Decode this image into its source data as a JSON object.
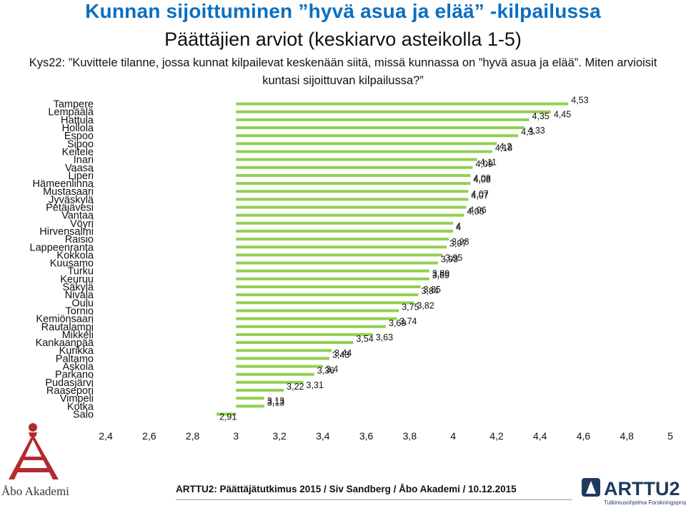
{
  "header": {
    "title": "Kunnan sijoittuminen ”hyvä asua ja elää” -kilpailussa",
    "subtitle": "Päättäjien arviot (keskiarvo asteikolla 1-5)",
    "question_line1": "Kys22: ”Kuvittele tilanne, jossa kunnat kilpailevat keskenään siitä, missä kunnassa on ”hyvä asua ja elää”. Miten arvioisit",
    "question_line2": "kuntasi sijoittuvan kilpailussa?”"
  },
  "footer": {
    "text": "ARTTU2: Päättäjätutkimus 2015 / Siv Sandberg / Åbo Akademi / 10.12.2015",
    "logo_left_text": "Åbo Akademi",
    "logo_right_text": "ARTTU2",
    "logo_right_tagline": "Tutkimusohjelma Forskningsprogram"
  },
  "colors": {
    "title": "#0b6fc0",
    "bar": "#92d050",
    "logo_left": "#b22a2f",
    "logo_right": "#1f3a5f"
  },
  "chart_data": {
    "type": "bar",
    "orientation": "horizontal",
    "categories": [
      "Tampere",
      "Lempäälä",
      "Hattula",
      "Hollola",
      "Espoo",
      "Sipoo",
      "Keitele",
      "Inari",
      "Vaasa",
      "Liperi",
      "Hämeenlinna",
      "Mustasaari",
      "Jyväskylä",
      "Petäjävesi",
      "Vantaa",
      "Vöyri",
      "Hirvensalmi",
      "Raisio",
      "Lappeenranta",
      "Kokkola",
      "Kuusamo",
      "Turku",
      "Keuruu",
      "Säkylä",
      "Nivala",
      "Oulu",
      "Tornio",
      "Kemiönsaari",
      "Rautalampi",
      "Mikkeli",
      "Kankaanpää",
      "Kurikka",
      "Paltamo",
      "Askola",
      "Parkano",
      "Pudasjärvi",
      "Raasepori",
      "Vimpeli",
      "Kotka",
      "Salo"
    ],
    "values": [
      4.53,
      4.45,
      4.35,
      4.33,
      4.3,
      4.2,
      4.18,
      4.11,
      4.09,
      4.08,
      4.08,
      4.07,
      4.07,
      4.06,
      4.05,
      4,
      4,
      3.98,
      3.97,
      3.95,
      3.93,
      3.89,
      3.89,
      3.85,
      3.84,
      3.82,
      3.75,
      3.74,
      3.69,
      3.63,
      3.54,
      3.44,
      3.43,
      3.4,
      3.36,
      3.31,
      3.22,
      3.13,
      3.13,
      2.91
    ],
    "value_labels": [
      "4,53",
      "4,45",
      "4,35",
      "4,33",
      "4,3",
      "4,2",
      "4,18",
      "4,11",
      "4,09",
      "4,08",
      "4,08",
      "4,07",
      "4,07",
      "4,06",
      "4,05",
      "4",
      "4",
      "3,98",
      "3,97",
      "3,95",
      "3,93",
      "3,89",
      "3,89",
      "3,85",
      "3,84",
      "3,82",
      "3,75",
      "3,74",
      "3,69",
      "3,63",
      "3,54",
      "3,44",
      "3,43",
      "3,4",
      "3,36",
      "3,31",
      "3,22",
      "3,13",
      "3,13",
      "2,91"
    ],
    "xlim": [
      2.4,
      5
    ],
    "xticks": [
      2.4,
      2.6,
      2.8,
      3,
      3.2,
      3.4,
      3.6,
      3.8,
      4,
      4.2,
      4.4,
      4.6,
      4.8,
      5
    ],
    "xtick_labels": [
      "2,4",
      "2,6",
      "2,8",
      "3",
      "3,2",
      "3,4",
      "3,6",
      "3,8",
      "4",
      "4,2",
      "4,4",
      "4,6",
      "4,8",
      "5"
    ],
    "grid": false,
    "legend": "none",
    "xlabel": "",
    "ylabel": ""
  }
}
